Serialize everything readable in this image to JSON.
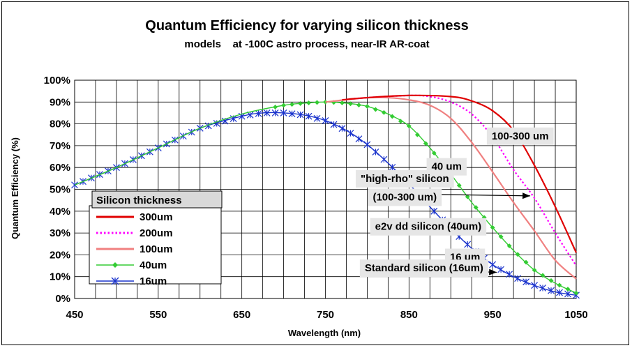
{
  "chart_data": {
    "type": "line",
    "title": "Quantum Efficiency for varying silicon thickness",
    "subtitle": "models    at -100C astro process, near-IR AR-coat",
    "xlabel": "Wavelength (nm)",
    "ylabel": "Quantum Efficiency (%)",
    "xlim": [
      450,
      1050
    ],
    "ylim": [
      0,
      100
    ],
    "x_ticks": [
      450,
      550,
      650,
      750,
      850,
      950,
      1050
    ],
    "x_tick_labels": [
      "450",
      "550",
      "650",
      "750",
      "850",
      "950",
      "1050"
    ],
    "y_ticks": [
      0,
      10,
      20,
      30,
      40,
      50,
      60,
      70,
      80,
      90,
      100
    ],
    "y_tick_labels": [
      "0%",
      "10%",
      "20%",
      "30%",
      "40%",
      "50%",
      "60%",
      "70%",
      "80%",
      "90%",
      "100%"
    ],
    "grid": true,
    "legend": {
      "title": "Silicon thickness",
      "placement": "lower-left",
      "entries": [
        "300um",
        "200um",
        "100um",
        "40um",
        "16um"
      ]
    },
    "series": [
      {
        "name": "300um",
        "color": "#e00000",
        "style": "solid",
        "marker": "none",
        "x": [
          770,
          800,
          850,
          900,
          925,
          950,
          975,
          1000,
          1025,
          1050
        ],
        "y": [
          91,
          92,
          93,
          92.5,
          90.5,
          86,
          77,
          61,
          42,
          21
        ]
      },
      {
        "name": "200um",
        "color": "#ff00ff",
        "style": "dotted",
        "marker": "none",
        "x": [
          770,
          800,
          850,
          875,
          900,
          925,
          950,
          975,
          1000,
          1025,
          1050
        ],
        "y": [
          91,
          92,
          93,
          92.5,
          90,
          84.5,
          74,
          59,
          46,
          30,
          15
        ]
      },
      {
        "name": "100um",
        "color": "#f08080",
        "style": "solid",
        "marker": "none",
        "x": [
          750,
          800,
          825,
          850,
          875,
          900,
          925,
          950,
          975,
          1000,
          1025,
          1050
        ],
        "y": [
          90,
          92,
          92,
          91,
          88.5,
          82.5,
          71.5,
          58,
          44,
          31,
          17.5,
          9
        ]
      },
      {
        "name": "40um",
        "color": "#33cc33",
        "style": "solid",
        "marker": "diamond",
        "x": [
          450,
          500,
          550,
          600,
          650,
          700,
          725,
          750,
          775,
          800,
          825,
          850,
          875,
          900,
          925,
          950,
          975,
          1000,
          1025,
          1050
        ],
        "y": [
          52,
          60,
          69,
          78,
          84.5,
          88.5,
          89.5,
          90,
          89.5,
          88,
          84.5,
          79,
          69,
          57,
          44,
          32.5,
          22,
          13,
          7,
          2.5
        ]
      },
      {
        "name": "16um",
        "color": "#1a33cc",
        "style": "solid",
        "marker": "asterisk",
        "x": [
          450,
          500,
          550,
          600,
          650,
          675,
          700,
          725,
          750,
          775,
          800,
          825,
          850,
          875,
          900,
          925,
          950,
          975,
          1000,
          1025,
          1050
        ],
        "y": [
          52,
          60,
          69,
          78,
          83.5,
          85,
          85,
          84,
          81.5,
          77,
          70.5,
          62,
          52.5,
          42,
          32,
          23,
          15.5,
          10,
          6,
          3,
          1.5
        ]
      }
    ],
    "annotations": [
      {
        "text": "100-300 um",
        "label_x": 983,
        "label_y": 74.5
      },
      {
        "text": "40 um",
        "label_x": 895,
        "label_y": 60.5
      },
      {
        "text": "\"high-rho\" silicon",
        "label_x": 845,
        "label_y": 55
      },
      {
        "text": "(100-300 um)",
        "label_x": 845,
        "label_y": 46.5
      },
      {
        "text": "e2v dd silicon (40um)",
        "label_x": 873,
        "label_y": 33
      },
      {
        "text": "16 um",
        "label_x": 917,
        "label_y": 19
      },
      {
        "text": "Standard silicon (16um)",
        "label_x": 868,
        "label_y": 14
      }
    ],
    "arrows": [
      {
        "from": [
          822,
          48
        ],
        "to": [
          995,
          47
        ]
      },
      {
        "from": [
          864,
          34
        ],
        "to": [
          930,
          34
        ]
      },
      {
        "from": [
          877,
          13
        ],
        "to": [
          955,
          12
        ]
      }
    ]
  }
}
